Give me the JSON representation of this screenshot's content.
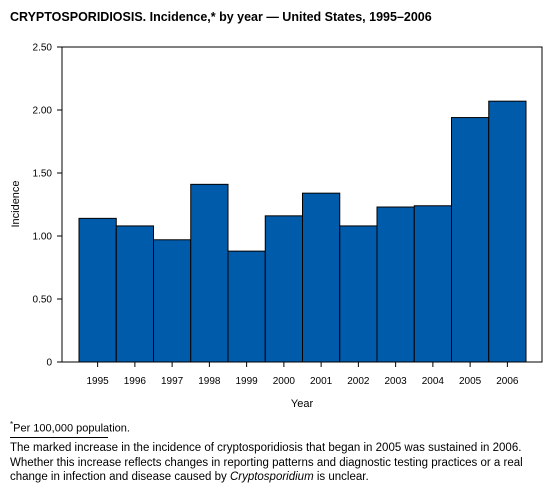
{
  "header": {
    "title": "CRYPTOSPORIDIOSIS. Incidence,* by year — United States, 1995–2006"
  },
  "chart_data": {
    "type": "bar",
    "categories": [
      "1995",
      "1996",
      "1997",
      "1998",
      "1999",
      "2000",
      "2001",
      "2002",
      "2003",
      "2004",
      "2005",
      "2006"
    ],
    "values": [
      1.14,
      1.08,
      0.97,
      1.41,
      0.88,
      1.16,
      1.34,
      1.08,
      1.23,
      1.24,
      1.94,
      2.07
    ],
    "xlabel": "Year",
    "ylabel": "Incidence",
    "ylim": [
      0,
      2.5
    ],
    "yticks": [
      "0",
      "0.50",
      "1.00",
      "1.50",
      "2.00",
      "2.50"
    ],
    "bar_color": "#005bab",
    "grid": false,
    "legend": "none"
  },
  "footnote": {
    "mark": "*",
    "text": "Per 100,000 population."
  },
  "note": {
    "before_italic": "The marked increase in the incidence of cryptosporidiosis that began in 2005 was sustained in 2006. Whether this increase reflects changes in reporting patterns and diagnostic testing practices or a real change in infection and disease caused by ",
    "italic": "Cryptosporidium",
    "after_italic": " is unclear."
  }
}
